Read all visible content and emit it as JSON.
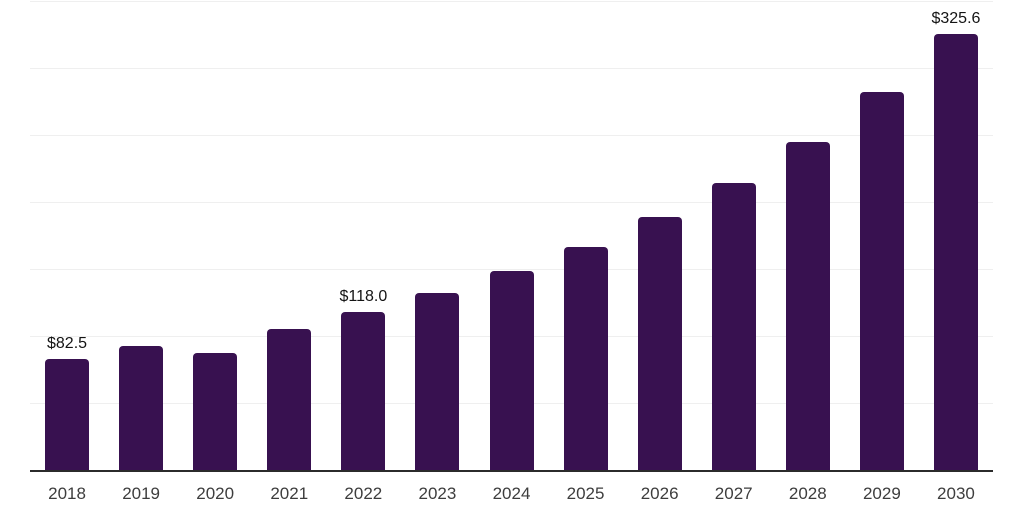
{
  "chart_data": {
    "type": "bar",
    "title": "",
    "categories": [
      "2018",
      "2019",
      "2020",
      "2021",
      "2022",
      "2023",
      "2024",
      "2025",
      "2026",
      "2027",
      "2028",
      "2029",
      "2030"
    ],
    "values": [
      82.5,
      92.3,
      87.0,
      105.6,
      118.0,
      131.8,
      148.8,
      166.8,
      188.5,
      214.5,
      245.0,
      281.8,
      325.6
    ],
    "data_labels": [
      "$82.5",
      "",
      "",
      "",
      "$118.0",
      "",
      "",
      "",
      "",
      "",
      "",
      "",
      "$325.6"
    ],
    "xlabel": "",
    "ylabel": "",
    "ylim": [
      0,
      350
    ],
    "grid_step": 50,
    "grid": "horizontal-only",
    "legend": "none",
    "colors": {
      "bar": "#381150",
      "axis_line": "#2b2b2b",
      "gridline": "#efefef",
      "tick_label": "#3d3d3d",
      "value_label": "#141414",
      "background": "#ffffff"
    }
  }
}
